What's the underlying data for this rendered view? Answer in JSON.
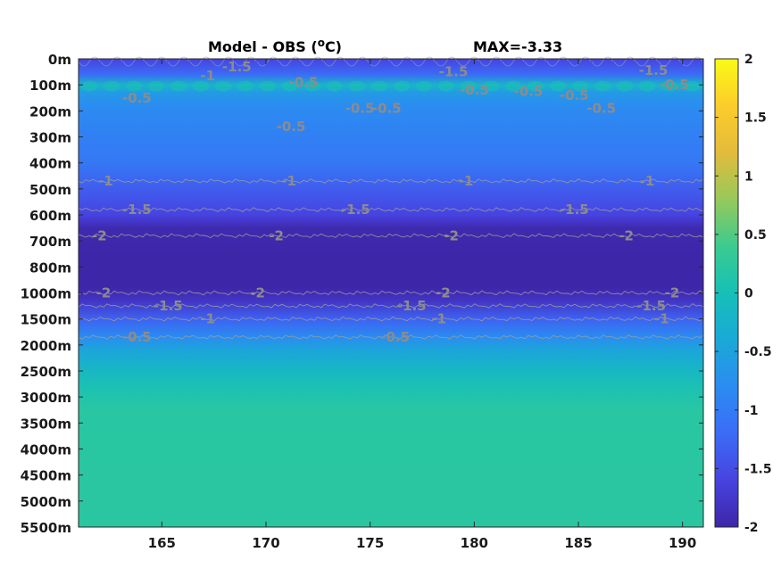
{
  "chart_data": {
    "type": "heatmap",
    "title": "Model - OBS (",
    "title_unit": "C)",
    "title_degree": "o",
    "max_label": "MAX=-3.33",
    "xlabel": "",
    "ylabel": "",
    "xlim": [
      161,
      191
    ],
    "x_ticks": [
      {
        "value": 165,
        "label": "165"
      },
      {
        "value": 170,
        "label": "170"
      },
      {
        "value": 175,
        "label": "175"
      },
      {
        "value": 180,
        "label": "180"
      },
      {
        "value": 185,
        "label": "185"
      },
      {
        "value": 190,
        "label": "190"
      }
    ],
    "y_ticks": [
      "0m",
      "100m",
      "200m",
      "300m",
      "400m",
      "500m",
      "600m",
      "700m",
      "800m",
      "1000m",
      "1500m",
      "2000m",
      "2500m",
      "3000m",
      "3500m",
      "4000m",
      "4500m",
      "5000m",
      "5500m"
    ],
    "depth_profile": [
      {
        "level": 0.0,
        "value": -1.6
      },
      {
        "level": 0.6,
        "value": -1.2
      },
      {
        "level": 1.0,
        "value": -0.2
      },
      {
        "level": 1.3,
        "value": -0.6
      },
      {
        "level": 1.8,
        "value": -0.8
      },
      {
        "level": 3.0,
        "value": -0.95
      },
      {
        "level": 4.0,
        "value": -1.05
      },
      {
        "level": 5.0,
        "value": -1.35
      },
      {
        "level": 6.0,
        "value": -1.6
      },
      {
        "level": 6.5,
        "value": -1.95
      },
      {
        "level": 7.5,
        "value": -2.05
      },
      {
        "level": 8.8,
        "value": -2.05
      },
      {
        "level": 9.3,
        "value": -1.8
      },
      {
        "level": 10.0,
        "value": -1.3
      },
      {
        "level": 10.7,
        "value": -0.8
      },
      {
        "level": 11.2,
        "value": -0.45
      },
      {
        "level": 12.0,
        "value": -0.15
      },
      {
        "level": 12.6,
        "value": 0.05
      },
      {
        "level": 13.5,
        "value": 0.2
      },
      {
        "level": 18.0,
        "value": 0.22
      }
    ],
    "contours": [
      {
        "value": -1,
        "label": "-1",
        "level": 4.7,
        "label_x": [
          162.3,
          171.1,
          179.6,
          188.3
        ]
      },
      {
        "value": -1.5,
        "label": "-1.5",
        "level": 5.8,
        "label_x": [
          163.8,
          174.3,
          184.8
        ]
      },
      {
        "value": -2,
        "label": "-2",
        "level": 6.8,
        "label_x": [
          162.0,
          170.5,
          178.9,
          187.3
        ]
      },
      {
        "value": -2,
        "label": "-2",
        "level": 9.0,
        "label_x": [
          162.2,
          169.6,
          178.5,
          189.5
        ]
      },
      {
        "value": -1.5,
        "label": "-1.5",
        "level": 9.5,
        "label_x": [
          165.3,
          177.0,
          188.5
        ]
      },
      {
        "value": -1,
        "label": "-1",
        "level": 10.0,
        "label_x": [
          167.2,
          178.3,
          189.0
        ]
      },
      {
        "value": -0.5,
        "label": "-0.5",
        "level": 10.7,
        "label_x": [
          163.8,
          176.2
        ]
      }
    ],
    "near_surface_labels": [
      {
        "label": "-1",
        "x": 167.2,
        "level": 0.65
      },
      {
        "label": "-1.5",
        "x": 168.6,
        "level": 0.3
      },
      {
        "label": "-0.5",
        "x": 171.8,
        "level": 0.9
      },
      {
        "label": "-1.5",
        "x": 179.0,
        "level": 0.5
      },
      {
        "label": "-0.5",
        "x": 180.0,
        "level": 1.2
      },
      {
        "label": "-0.5",
        "x": 182.6,
        "level": 1.25
      },
      {
        "label": "-0.5",
        "x": 184.8,
        "level": 1.4
      },
      {
        "label": "-1.5",
        "x": 188.6,
        "level": 0.45
      },
      {
        "label": "-0.5",
        "x": 189.6,
        "level": 1.0
      },
      {
        "label": "-0.5",
        "x": 163.8,
        "level": 1.5
      },
      {
        "label": "-0.5",
        "x": 171.2,
        "level": 2.6
      },
      {
        "label": "-0.5",
        "x": 174.5,
        "level": 1.9
      },
      {
        "label": "-0.5",
        "x": 175.8,
        "level": 1.9
      },
      {
        "label": "-0.5",
        "x": 186.1,
        "level": 1.9
      }
    ],
    "colorbar": {
      "min": -2,
      "max": 2,
      "ticks": [
        {
          "value": 2,
          "label": "2"
        },
        {
          "value": 1.5,
          "label": "1.5"
        },
        {
          "value": 1,
          "label": "1"
        },
        {
          "value": 0.5,
          "label": "0.5"
        },
        {
          "value": 0,
          "label": "0"
        },
        {
          "value": -0.5,
          "label": "-0.5"
        },
        {
          "value": -1,
          "label": "-1"
        },
        {
          "value": -1.5,
          "label": "-1.5"
        },
        {
          "value": -2,
          "label": "-2"
        }
      ],
      "colormap": [
        "#3e26a8",
        "#4743e0",
        "#3b6cf7",
        "#2b8cf1",
        "#1aa9d7",
        "#16c0b7",
        "#3bcb8f",
        "#97c95a",
        "#e3bb3c",
        "#fdcc2b",
        "#f9fb15"
      ]
    }
  }
}
